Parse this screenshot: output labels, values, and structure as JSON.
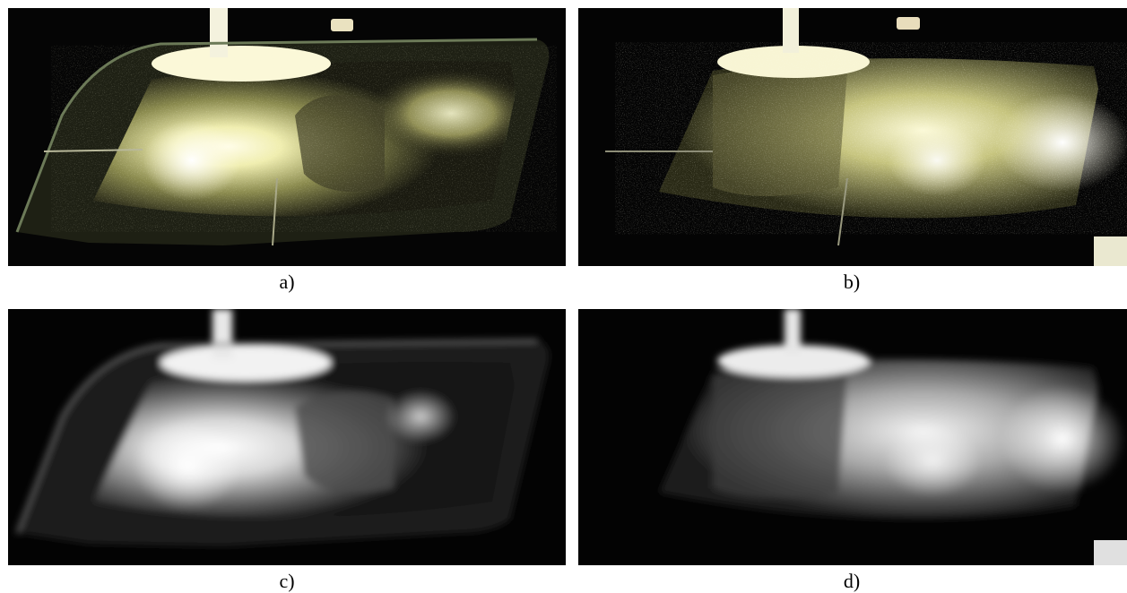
{
  "figure": {
    "panels": [
      {
        "id": "a",
        "caption": "a)",
        "mode": "color",
        "tint": "#e8e6a8"
      },
      {
        "id": "b",
        "caption": "b)",
        "mode": "color",
        "tint": "#eeecb4"
      },
      {
        "id": "c",
        "caption": "c)",
        "mode": "grayscale",
        "tint": "#dcdcdc"
      },
      {
        "id": "d",
        "caption": "d)",
        "mode": "grayscale",
        "tint": "#e2e2e2"
      }
    ]
  }
}
